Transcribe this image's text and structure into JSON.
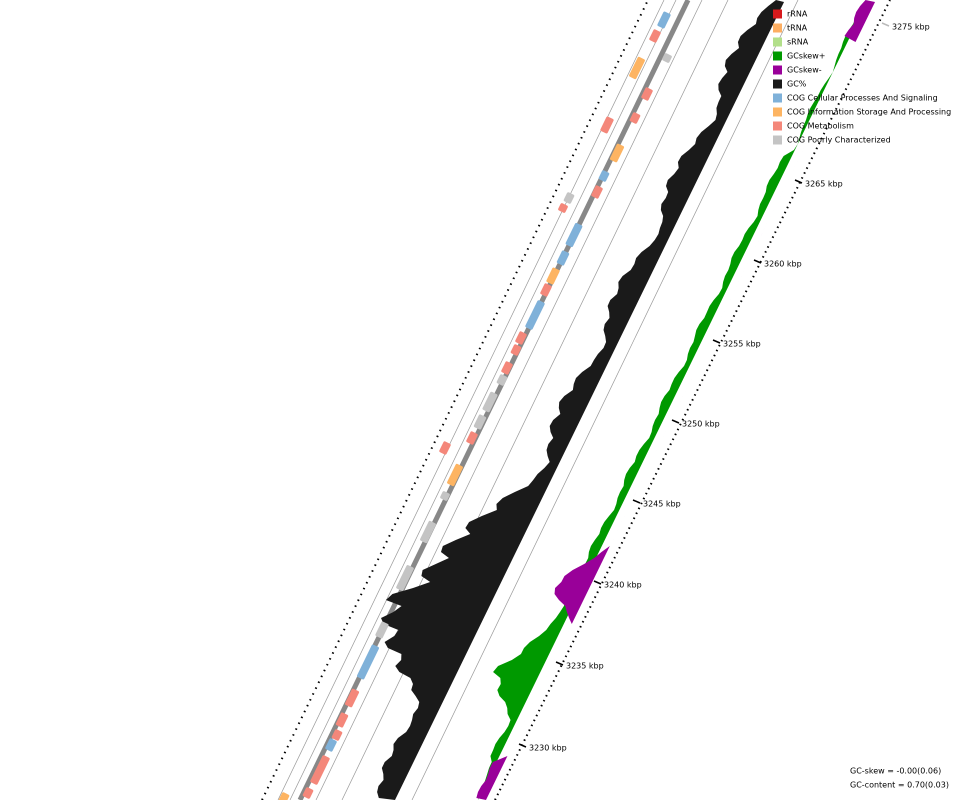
{
  "legend": [
    {
      "label": "rRNA",
      "color": "#d7191c"
    },
    {
      "label": "tRNA",
      "color": "#fdae61"
    },
    {
      "label": "sRNA",
      "color": "#b2df8a"
    },
    {
      "label": "GCskew+",
      "color": "#009900"
    },
    {
      "label": "GCskew-",
      "color": "#990099"
    },
    {
      "label": "GC%",
      "color": "#1a1a1a"
    },
    {
      "label": "COG Cellular Processes And Signaling",
      "color": "#7fb1d9"
    },
    {
      "label": "COG Information Storage And Processing",
      "color": "#fdb462"
    },
    {
      "label": "COG Metabolism",
      "color": "#f4877a"
    },
    {
      "label": "COG Poorly Characterized",
      "color": "#c4c4c4"
    }
  ],
  "scale_labels": [
    "3230 kbp",
    "3235 kbp",
    "3240 kbp",
    "3245 kbp",
    "3250 kbp",
    "3255 kbp",
    "3260 kbp",
    "3265 kbp",
    "3275 kbp"
  ],
  "stats": {
    "gc_skew": "GC-skew = -0.00(0.06)",
    "gc_content": "GC-content = 0.70(0.03)"
  }
}
